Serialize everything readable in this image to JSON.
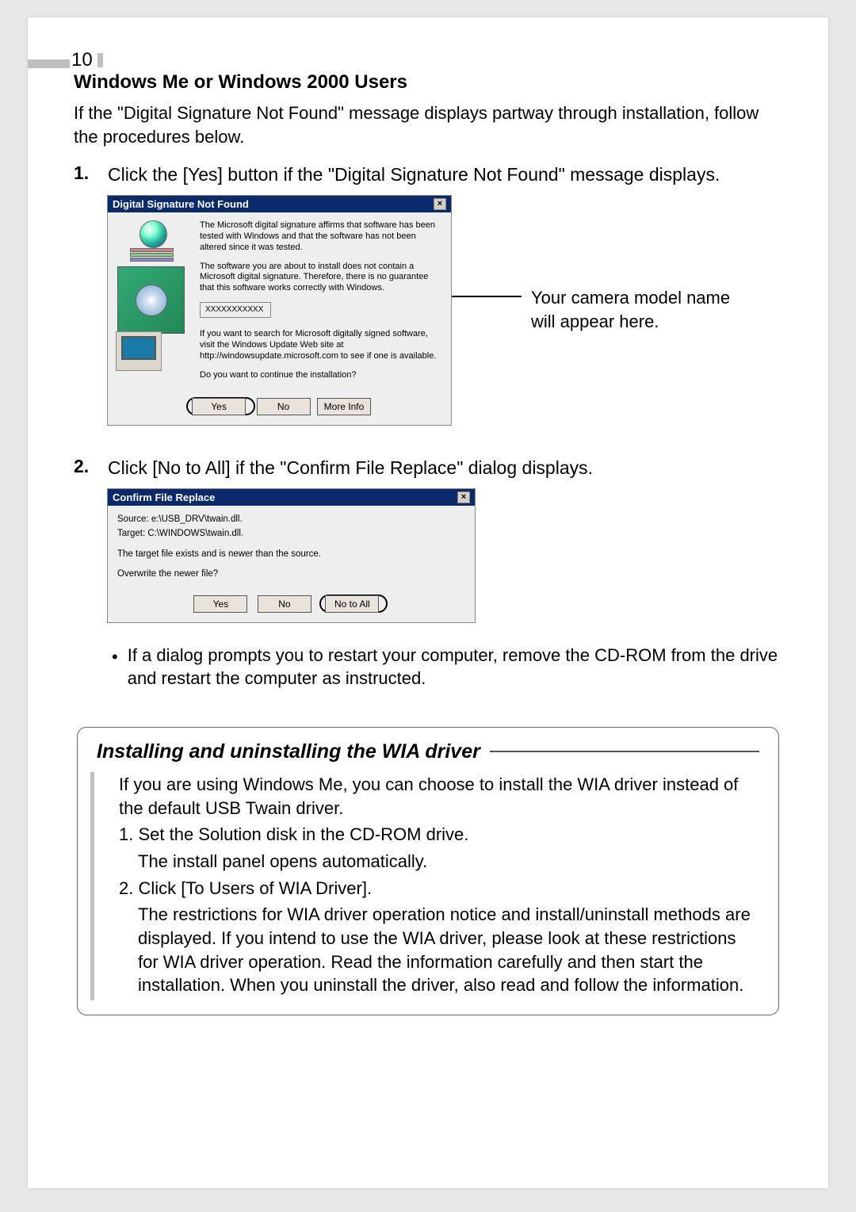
{
  "page_number": "10",
  "section_title": "Windows Me or Windows 2000 Users",
  "intro_text": "If the \"Digital Signature Not Found\" message displays partway through installation, follow the procedures below.",
  "step1_num": "1.",
  "step1_text": "Click the [Yes] button if the \"Digital Signature Not Found\" message displays.",
  "dialog1": {
    "title": "Digital Signature Not Found",
    "close_glyph": "×",
    "para1": "The Microsoft digital signature affirms that software has been tested with Windows and that the software has not been altered since it was tested.",
    "para2": "The software you are about to install does not contain a Microsoft digital signature. Therefore, there is no guarantee that this software works correctly with Windows.",
    "model_placeholder": "XXXXXXXXXXX",
    "para3": "If you want to search for Microsoft digitally signed software, visit the Windows Update Web site at http://windowsupdate.microsoft.com to see if one is available.",
    "para4": "Do you want to continue the installation?",
    "btn_yes": "Yes",
    "btn_no": "No",
    "btn_more": "More Info"
  },
  "callout1_line1": "Your camera model name",
  "callout1_line2": "will appear here.",
  "step2_num": "2.",
  "step2_text": "Click [No to All] if the \"Confirm File Replace\" dialog displays.",
  "dialog2": {
    "title": "Confirm File Replace",
    "close_glyph": "×",
    "source": "Source: e:\\USB_DRV\\twain.dll.",
    "target": "Target: C:\\WINDOWS\\twain.dll.",
    "msg1": "The target file exists and is newer than the source.",
    "msg2": "Overwrite the newer file?",
    "btn_yes": "Yes",
    "btn_no": "No",
    "btn_notoall": "No to All"
  },
  "bullet_text": "If a dialog prompts you to restart your computer, remove the CD-ROM from the drive and restart the computer as instructed.",
  "box": {
    "title": "Installing and uninstalling the WIA driver",
    "p1": "If you are using Windows Me, you can choose to install the WIA driver instead of the default USB Twain driver.",
    "l1": "1. Set the Solution disk in the CD-ROM drive.",
    "l1b": "The install panel opens automatically.",
    "l2": "2. Click [To Users of WIA Driver].",
    "l2b": "The restrictions for WIA driver operation notice and install/uninstall methods are displayed. If you intend to use the WIA driver, please look at these restrictions for WIA driver operation. Read the information carefully and then start the installation. When you uninstall the driver, also read and follow the information."
  }
}
